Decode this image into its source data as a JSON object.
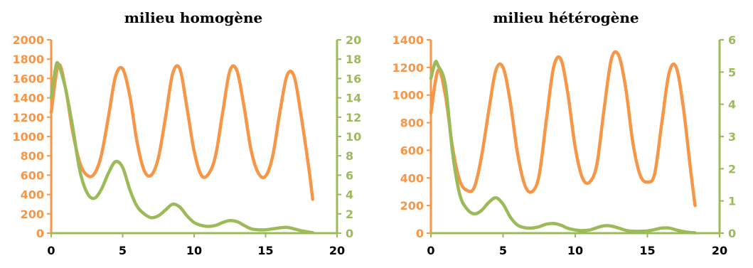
{
  "colors": {
    "orange": "#F79646",
    "green": "#9BBB59",
    "axis_text_x": "#000000"
  },
  "chart_data": [
    {
      "type": "line",
      "title": "milieu homogène",
      "x_ticks": [
        "0",
        "5",
        "10",
        "15",
        "20"
      ],
      "y_left_ticks": [
        "0",
        "200",
        "400",
        "600",
        "800",
        "1000",
        "1200",
        "1400",
        "1600",
        "1800",
        "2000"
      ],
      "y_right_ticks": [
        "0",
        "2",
        "4",
        "6",
        "8",
        "10",
        "12",
        "14",
        "16",
        "18",
        "20"
      ],
      "xlim": [
        0,
        20
      ],
      "ylim_left": [
        0,
        2000
      ],
      "ylim_right": [
        0,
        20
      ],
      "series": [
        {
          "axis": "left",
          "color": "#F79646",
          "x": [
            0,
            0.5,
            1,
            1.5,
            2,
            2.5,
            3,
            3.5,
            4,
            4.5,
            5,
            5.5,
            6,
            6.5,
            7,
            7.5,
            8,
            8.5,
            9,
            9.5,
            10,
            10.5,
            11,
            11.5,
            12,
            12.5,
            13,
            13.5,
            14,
            14.5,
            15,
            15.5,
            16,
            16.5,
            17,
            17.5,
            18,
            18.3
          ],
          "y": [
            1250,
            1740,
            1500,
            1050,
            730,
            600,
            610,
            800,
            1200,
            1620,
            1700,
            1420,
            950,
            650,
            600,
            780,
            1200,
            1650,
            1700,
            1300,
            850,
            600,
            610,
            800,
            1250,
            1680,
            1680,
            1300,
            850,
            620,
            590,
            800,
            1250,
            1630,
            1620,
            1200,
            700,
            350
          ]
        },
        {
          "axis": "right",
          "color": "#9BBB59",
          "x": [
            0,
            0.3,
            0.5,
            1,
            1.5,
            2,
            2.5,
            3,
            3.5,
            4,
            4.5,
            5,
            5.5,
            6,
            6.5,
            7,
            7.5,
            8,
            8.5,
            9,
            9.5,
            10,
            10.5,
            11,
            11.5,
            12,
            12.5,
            13,
            13.5,
            14,
            14.5,
            15,
            15.5,
            16,
            16.5,
            17,
            17.5,
            18,
            18.3
          ],
          "y": [
            14,
            17,
            17.5,
            15,
            11,
            6.5,
            4.2,
            3.6,
            4.5,
            6.2,
            7.4,
            6.8,
            4.5,
            2.8,
            2.0,
            1.6,
            1.8,
            2.4,
            3.0,
            2.7,
            1.8,
            1.1,
            0.8,
            0.7,
            0.8,
            1.1,
            1.3,
            1.2,
            0.8,
            0.45,
            0.35,
            0.35,
            0.45,
            0.55,
            0.6,
            0.45,
            0.25,
            0.12,
            0.05
          ]
        }
      ]
    },
    {
      "type": "line",
      "title": "milieu hétérogène",
      "x_ticks": [
        "0",
        "5",
        "10",
        "15",
        "20"
      ],
      "y_left_ticks": [
        "0",
        "200",
        "400",
        "600",
        "800",
        "1000",
        "1200",
        "1400"
      ],
      "y_right_ticks": [
        "0",
        "1",
        "2",
        "3",
        "4",
        "5",
        "6"
      ],
      "xlim": [
        0,
        20
      ],
      "ylim_left": [
        0,
        1400
      ],
      "ylim_right": [
        0,
        6
      ],
      "series": [
        {
          "axis": "left",
          "color": "#F79646",
          "x": [
            0,
            0.5,
            1,
            1.5,
            2,
            2.5,
            3,
            3.5,
            4,
            4.5,
            5,
            5.5,
            6,
            6.5,
            7,
            7.5,
            8,
            8.5,
            9,
            9.5,
            10,
            10.5,
            11,
            11.5,
            12,
            12.5,
            13,
            13.5,
            14,
            14.5,
            15,
            15.5,
            16,
            16.5,
            17,
            17.5,
            18,
            18.3
          ],
          "y": [
            870,
            1180,
            1000,
            620,
            380,
            310,
            330,
            550,
            880,
            1180,
            1200,
            950,
            580,
            350,
            300,
            420,
            820,
            1200,
            1260,
            1000,
            620,
            400,
            370,
            500,
            900,
            1260,
            1290,
            1050,
            650,
            420,
            370,
            430,
            800,
            1160,
            1200,
            900,
            450,
            200
          ]
        },
        {
          "axis": "right",
          "color": "#9BBB59",
          "x": [
            0,
            0.3,
            0.5,
            1,
            1.5,
            2,
            2.5,
            3,
            3.5,
            4,
            4.5,
            5,
            5.5,
            6,
            6.5,
            7,
            7.5,
            8,
            8.5,
            9,
            9.5,
            10,
            10.5,
            11,
            11.5,
            12,
            12.5,
            13,
            13.5,
            14,
            14.5,
            15,
            15.5,
            16,
            16.5,
            17,
            17.5,
            18,
            18.3
          ],
          "y": [
            4.8,
            5.3,
            5.2,
            4.6,
            2.5,
            1.2,
            0.75,
            0.6,
            0.7,
            0.95,
            1.1,
            0.9,
            0.5,
            0.25,
            0.17,
            0.16,
            0.2,
            0.28,
            0.3,
            0.25,
            0.15,
            0.1,
            0.08,
            0.1,
            0.17,
            0.23,
            0.22,
            0.16,
            0.09,
            0.06,
            0.06,
            0.07,
            0.11,
            0.16,
            0.16,
            0.1,
            0.05,
            0.02,
            0.01
          ]
        }
      ]
    }
  ]
}
